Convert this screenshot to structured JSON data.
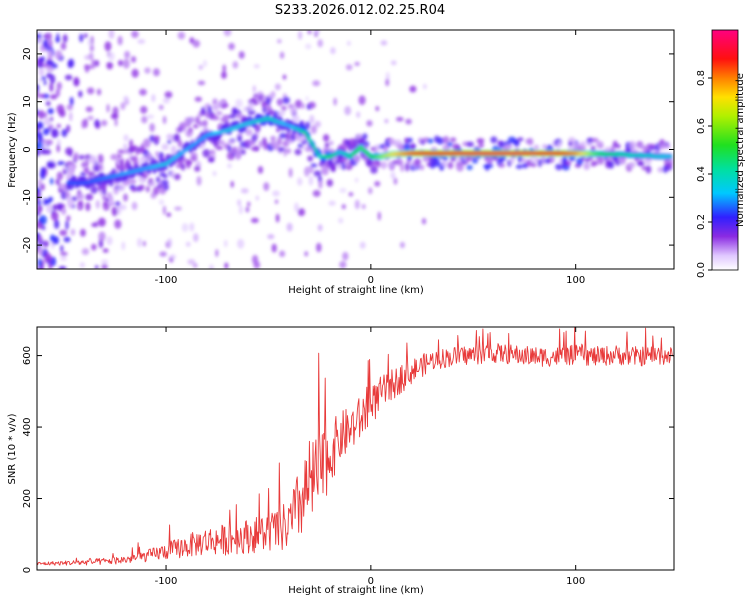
{
  "title": "S233.2026.012.02.25.R04",
  "chart_data": [
    {
      "type": "heatmap",
      "xlabel": "Height of straight line (km)",
      "ylabel": "Frequency (Hz)",
      "xlim": [
        -163,
        148
      ],
      "ylim": [
        -25,
        25
      ],
      "xticks": [
        -100,
        0,
        100
      ],
      "xtick_labels": [
        "-100",
        "0",
        "100"
      ],
      "yticks": [
        -20,
        -10,
        0,
        10,
        20
      ],
      "ytick_labels": [
        "-20",
        "-10",
        "0",
        "10",
        "20"
      ],
      "grid": false,
      "colorbar": {
        "label": "Normalized spectral amplitude",
        "range": [
          0,
          1
        ],
        "ticks": [
          0,
          0.2,
          0.4,
          0.6,
          0.8
        ],
        "tick_labels": [
          "0.0",
          "0.2",
          "0.4",
          "0.6",
          "0.8"
        ],
        "colormap": "rainbow (white-violet-blue-cyan-green-yellow-orange-red-magenta)"
      },
      "ridge": {
        "x": [
          -140,
          -120,
          -110,
          -100,
          -90,
          -80,
          -70,
          -60,
          -50,
          -40,
          -32,
          -25,
          -20,
          -15,
          -10,
          -5,
          0,
          5,
          10,
          20,
          30,
          50,
          70,
          90,
          100,
          110,
          120,
          130,
          145
        ],
        "y": [
          -7,
          -5,
          -4,
          -3,
          0,
          3,
          4,
          5.5,
          6.5,
          5,
          3.5,
          -1.5,
          -1.5,
          -0.5,
          -1.5,
          0.5,
          -1.5,
          -1.5,
          -1,
          -0.8,
          -0.8,
          -0.8,
          -0.8,
          -0.8,
          -0.8,
          -0.9,
          -1,
          -1.2,
          -1.5
        ],
        "amplitude": [
          0.25,
          0.3,
          0.3,
          0.35,
          0.3,
          0.3,
          0.35,
          0.35,
          0.4,
          0.3,
          0.45,
          0.4,
          0.5,
          0.35,
          0.45,
          0.55,
          0.5,
          0.6,
          0.7,
          0.85,
          0.9,
          0.95,
          0.95,
          0.9,
          0.8,
          0.55,
          0.45,
          0.4,
          0.35
        ]
      }
    },
    {
      "type": "line",
      "xlabel": "Height of straight line (km)",
      "ylabel": "SNR (10 * v/v)",
      "xlim": [
        -163,
        148
      ],
      "ylim": [
        0,
        680
      ],
      "xticks": [
        -100,
        0,
        100
      ],
      "xtick_labels": [
        "-100",
        "0",
        "100"
      ],
      "yticks": [
        0,
        200,
        400,
        600
      ],
      "ytick_labels": [
        "0",
        "200",
        "400",
        "600"
      ],
      "grid": false,
      "series": [
        {
          "color": "#e83a3a",
          "x": [
            -163,
            -150,
            -140,
            -130,
            -120,
            -110,
            -100,
            -90,
            -80,
            -70,
            -60,
            -50,
            -40,
            -35,
            -30,
            -25,
            -20,
            -15,
            -10,
            -5,
            0,
            5,
            10,
            15,
            20,
            25,
            30,
            40,
            50,
            60,
            70,
            80,
            90,
            100,
            110,
            120,
            130,
            140,
            148
          ],
          "y": [
            18,
            20,
            22,
            25,
            30,
            40,
            55,
            70,
            85,
            90,
            100,
            110,
            130,
            190,
            250,
            280,
            330,
            380,
            400,
            430,
            460,
            500,
            520,
            540,
            560,
            575,
            590,
            600,
            605,
            610,
            605,
            600,
            600,
            605,
            600,
            605,
            600,
            605,
            600
          ],
          "spread": [
            6,
            8,
            10,
            12,
            15,
            20,
            30,
            40,
            50,
            55,
            60,
            70,
            90,
            130,
            160,
            150,
            110,
            90,
            80,
            80,
            70,
            60,
            55,
            50,
            45,
            40,
            35,
            35,
            35,
            35,
            35,
            35,
            35,
            35,
            35,
            35,
            35,
            35,
            35
          ]
        }
      ]
    }
  ]
}
